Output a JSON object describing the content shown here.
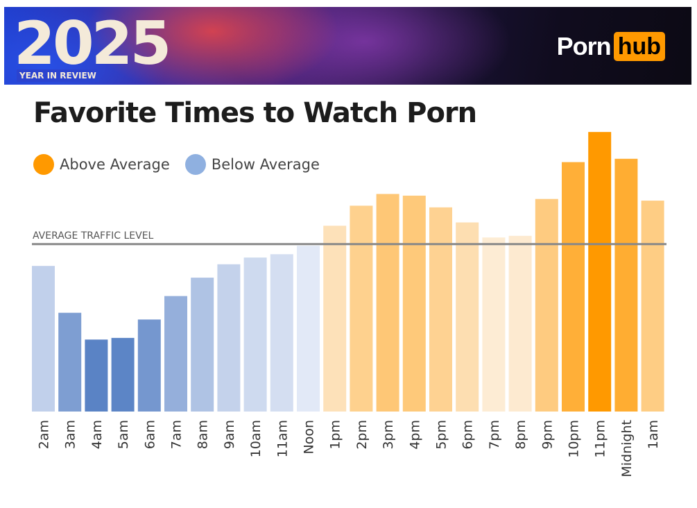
{
  "banner": {
    "year": "2025",
    "subtitle": "YEAR IN REVIEW",
    "logo_left": "Porn",
    "logo_right": "hub"
  },
  "colors": {
    "above_peak": "#ff9900",
    "below_peak": "#5a83c5",
    "average_line": "#888888"
  },
  "chart_data": {
    "type": "bar",
    "title": "Favorite Times to Watch Porn",
    "legend": [
      {
        "label": "Above Average",
        "color": "#ff9900"
      },
      {
        "label": "Below Average",
        "color": "#8fb0e0"
      }
    ],
    "average_label": "AVERAGE TRAFFIC LEVEL",
    "average_value": 100,
    "categories": [
      "2am",
      "3am",
      "4am",
      "5am",
      "6am",
      "7am",
      "8am",
      "9am",
      "10am",
      "11am",
      "Noon",
      "1pm",
      "2pm",
      "3pm",
      "4pm",
      "5pm",
      "6pm",
      "7pm",
      "8pm",
      "9pm",
      "10pm",
      "11pm",
      "Midnight",
      "1am"
    ],
    "values": [
      87,
      59,
      43,
      44,
      55,
      69,
      80,
      88,
      92,
      94,
      99,
      111,
      123,
      130,
      129,
      122,
      113,
      104,
      105,
      127,
      149,
      167,
      151,
      126
    ],
    "ylim": [
      0,
      170
    ],
    "legend_position": "top-left"
  }
}
